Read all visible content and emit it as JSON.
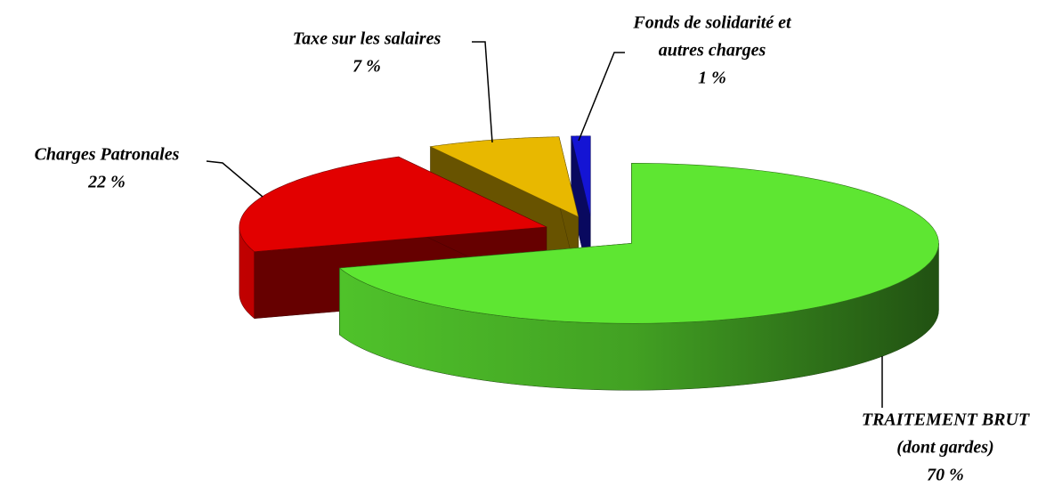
{
  "chart_data": {
    "type": "pie",
    "categories": [
      [
        "TRAITEMENT BRUT",
        "(dont gardes)"
      ],
      [
        "Charges Patronales"
      ],
      [
        "Taxe sur les salaires"
      ],
      [
        "Fonds de solidarité et",
        "autres charges"
      ]
    ],
    "values": [
      70,
      22,
      7,
      1
    ],
    "value_labels": [
      "70 %",
      "22 %",
      "7 %",
      "1 %"
    ],
    "colors": [
      "#5ee632",
      "#e20000",
      "#e8b800",
      "#1414d4"
    ]
  }
}
